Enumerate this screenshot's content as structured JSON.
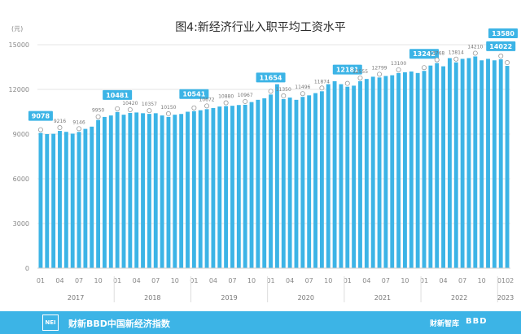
{
  "chart_data": {
    "type": "bar",
    "title": "图4:新经济行业入职平均工资水平",
    "y_unit": "(元)",
    "ylim": [
      0,
      15000
    ],
    "yticks": [
      0,
      3000,
      6000,
      9000,
      12000,
      15000
    ],
    "grid": true,
    "bar_color": "#3cb4e6",
    "label_box_color": "#3cb4e6",
    "month_ticks": [
      "01",
      "04",
      "07",
      "10",
      "01",
      "04",
      "07",
      "10",
      "01",
      "04",
      "07",
      "10",
      "01",
      "04",
      "07",
      "10",
      "01",
      "04",
      "07",
      "10",
      "01",
      "04",
      "07",
      "10",
      "0102"
    ],
    "years": [
      "2017",
      "2018",
      "2019",
      "2020",
      "2021",
      "2022",
      "2023"
    ],
    "categories": [
      "2017-01",
      "2017-02",
      "2017-03",
      "2017-04",
      "2017-05",
      "2017-06",
      "2017-07",
      "2017-08",
      "2017-09",
      "2017-10",
      "2017-11",
      "2017-12",
      "2018-01",
      "2018-02",
      "2018-03",
      "2018-04",
      "2018-05",
      "2018-06",
      "2018-07",
      "2018-08",
      "2018-09",
      "2018-10",
      "2018-11",
      "2018-12",
      "2019-01",
      "2019-02",
      "2019-03",
      "2019-04",
      "2019-05",
      "2019-06",
      "2019-07",
      "2019-08",
      "2019-09",
      "2019-10",
      "2019-11",
      "2019-12",
      "2020-01",
      "2020-02",
      "2020-03",
      "2020-04",
      "2020-05",
      "2020-06",
      "2020-07",
      "2020-08",
      "2020-09",
      "2020-10",
      "2020-11",
      "2020-12",
      "2021-01",
      "2021-02",
      "2021-03",
      "2021-04",
      "2021-05",
      "2021-06",
      "2021-07",
      "2021-08",
      "2021-09",
      "2021-10",
      "2021-11",
      "2021-12",
      "2022-01",
      "2022-02",
      "2022-03",
      "2022-04",
      "2022-05",
      "2022-06",
      "2022-07",
      "2022-08",
      "2022-09",
      "2022-10",
      "2022-11",
      "2022-12",
      "2023-01",
      "2023-02"
    ],
    "values": [
      9078,
      9000,
      9020,
      9216,
      9150,
      9030,
      9146,
      9350,
      9500,
      9950,
      10150,
      10250,
      10481,
      10300,
      10420,
      10450,
      10400,
      10357,
      10400,
      10250,
      10150,
      10300,
      10350,
      10500,
      10541,
      10600,
      10672,
      10750,
      10850,
      10880,
      10900,
      10950,
      10967,
      11150,
      11300,
      11400,
      11654,
      12350,
      11350,
      11450,
      11300,
      11496,
      11600,
      11750,
      11874,
      12350,
      12550,
      12350,
      12181,
      12250,
      12555,
      12700,
      12850,
      12799,
      12900,
      12950,
      13100,
      13150,
      13200,
      13100,
      13242,
      13600,
      13768,
      13550,
      14100,
      13814,
      14050,
      14100,
      14210,
      13950,
      14050,
      13950,
      14022,
      13580
    ],
    "labels": [
      {
        "index": 0,
        "text": "9078",
        "boxed": true
      },
      {
        "index": 3,
        "text": "9216",
        "boxed": false
      },
      {
        "index": 6,
        "text": "9146",
        "boxed": false
      },
      {
        "index": 9,
        "text": "9950",
        "boxed": false
      },
      {
        "index": 12,
        "text": "10481",
        "boxed": true
      },
      {
        "index": 14,
        "text": "10420",
        "boxed": false
      },
      {
        "index": 17,
        "text": "10357",
        "boxed": false
      },
      {
        "index": 20,
        "text": "10150",
        "boxed": false
      },
      {
        "index": 24,
        "text": "10541",
        "boxed": true
      },
      {
        "index": 26,
        "text": "10672",
        "boxed": false
      },
      {
        "index": 29,
        "text": "10880",
        "boxed": false
      },
      {
        "index": 32,
        "text": "10967",
        "boxed": false
      },
      {
        "index": 36,
        "text": "11654",
        "boxed": true
      },
      {
        "index": 38,
        "text": "11350",
        "boxed": false
      },
      {
        "index": 41,
        "text": "11496",
        "boxed": false
      },
      {
        "index": 44,
        "text": "11874",
        "boxed": false
      },
      {
        "index": 48,
        "text": "12181",
        "boxed": true
      },
      {
        "index": 50,
        "text": "12555",
        "boxed": false
      },
      {
        "index": 53,
        "text": "12799",
        "boxed": false
      },
      {
        "index": 56,
        "text": "13100",
        "boxed": false
      },
      {
        "index": 60,
        "text": "13242",
        "boxed": true
      },
      {
        "index": 62,
        "text": "13768",
        "boxed": false
      },
      {
        "index": 65,
        "text": "13814",
        "boxed": false
      },
      {
        "index": 68,
        "text": "14210",
        "boxed": false
      },
      {
        "index": 72,
        "text": "14022",
        "boxed": true
      },
      {
        "index": 73,
        "text": "13580",
        "boxed": true
      }
    ]
  },
  "footer": {
    "logo_text": "NEI",
    "title": "财新BBD中国新经济指数",
    "brand1": "财新智库",
    "brand2": "BBD"
  }
}
